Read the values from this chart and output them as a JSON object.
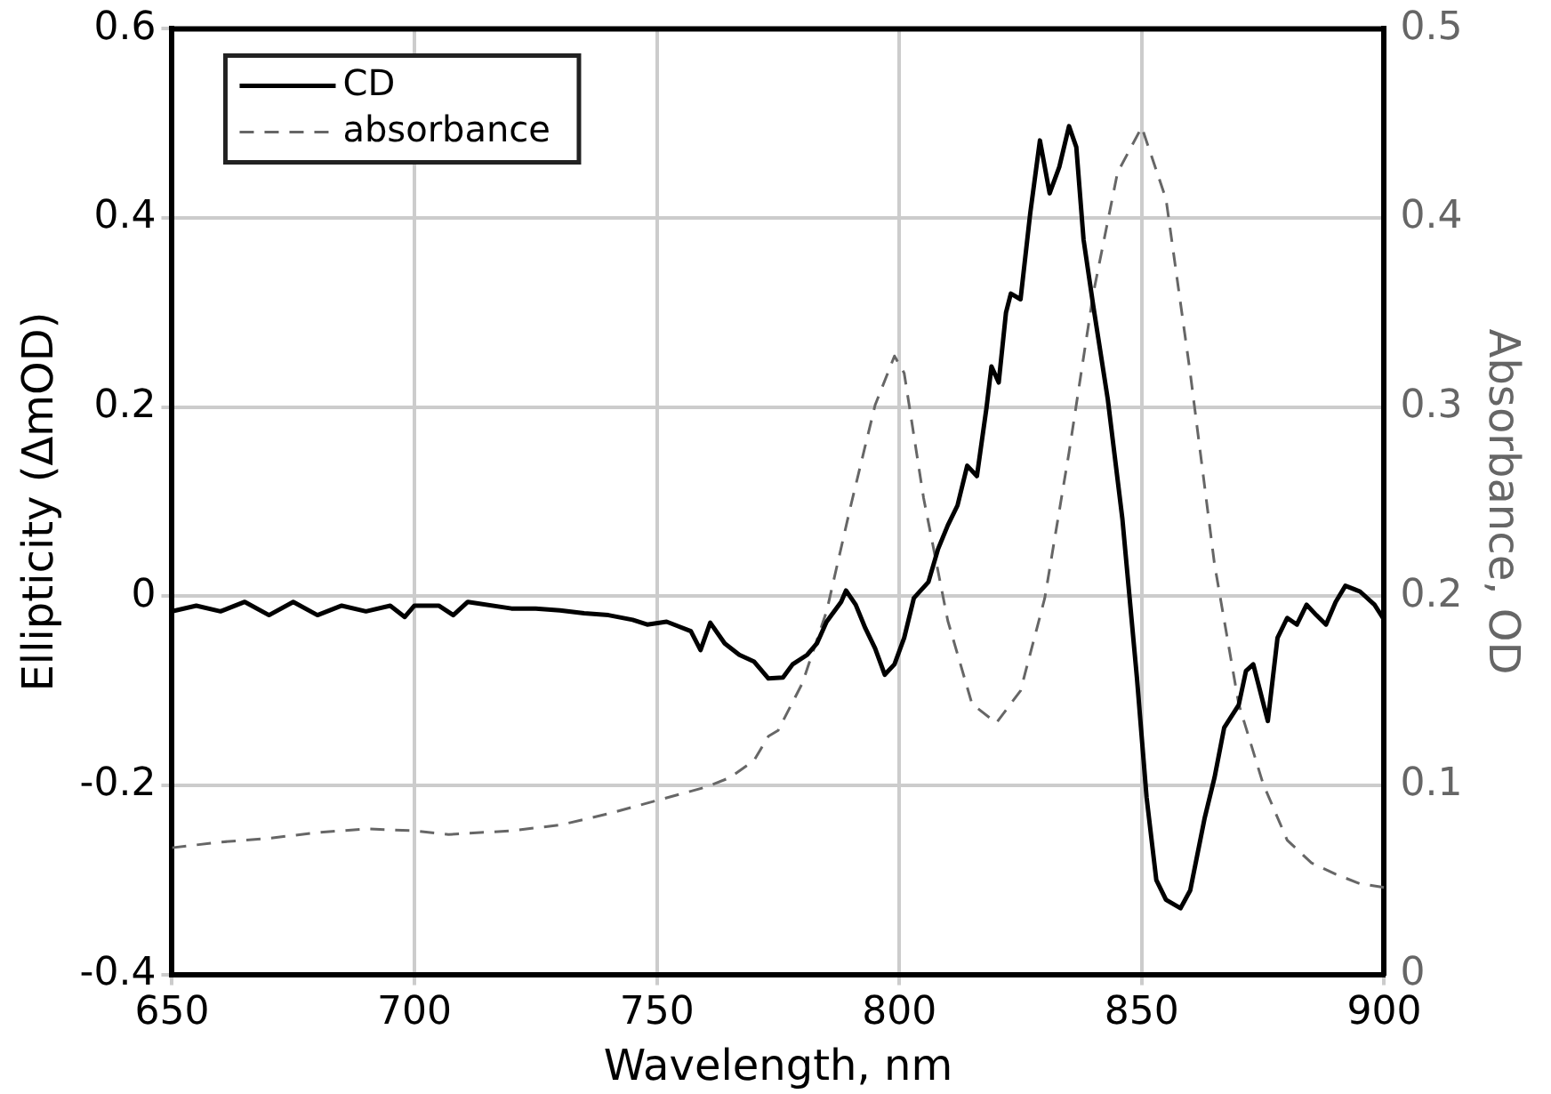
{
  "chart_data": {
    "type": "line",
    "xlabel": "Wavelength, nm",
    "ylabel": "Ellipticity (ΔmOD)",
    "y2label": "Absorbance, OD",
    "xlim": [
      650,
      900
    ],
    "xticks": [
      650,
      700,
      750,
      800,
      850,
      900
    ],
    "ylim": [
      -0.4,
      0.6
    ],
    "yticks": [
      -0.4,
      -0.2,
      0,
      0.2,
      0.4,
      0.6
    ],
    "y2lim": [
      0,
      0.5
    ],
    "y2ticks": [
      0,
      0.1,
      0.2,
      0.3,
      0.4,
      0.5
    ],
    "grid": true,
    "legend": "top left",
    "marker": "none",
    "series": [
      {
        "name": "CD",
        "color": "#000000",
        "line_style": "solid",
        "x": [
          650,
          655,
          660,
          665,
          670,
          675,
          680,
          685,
          690,
          695,
          698,
          700,
          705,
          708,
          711,
          720,
          725,
          730,
          735,
          740,
          745,
          748,
          752,
          757,
          759,
          761,
          764,
          767,
          770,
          773,
          776,
          778,
          781,
          783,
          785,
          788,
          789,
          791,
          793,
          795,
          797,
          799,
          801,
          803,
          806,
          808,
          810,
          812,
          814,
          816,
          818,
          819,
          820.5,
          822,
          823,
          825,
          827,
          829,
          831,
          833,
          835,
          836.5,
          838,
          840,
          843,
          846,
          849,
          851,
          853,
          855,
          858,
          860,
          863,
          865,
          867,
          870,
          871.5,
          873,
          876,
          878,
          880,
          882,
          884,
          886,
          888,
          890,
          892,
          895,
          898,
          900
        ],
        "values": [
          -0.016,
          -0.01,
          -0.016,
          -0.006,
          -0.02,
          -0.006,
          -0.02,
          -0.01,
          -0.016,
          -0.01,
          -0.022,
          -0.01,
          -0.01,
          -0.02,
          -0.006,
          -0.013,
          -0.013,
          -0.015,
          -0.018,
          -0.02,
          -0.025,
          -0.03,
          -0.027,
          -0.037,
          -0.057,
          -0.028,
          -0.05,
          -0.062,
          -0.069,
          -0.087,
          -0.086,
          -0.072,
          -0.062,
          -0.05,
          -0.027,
          -0.006,
          0.006,
          -0.009,
          -0.034,
          -0.055,
          -0.083,
          -0.072,
          -0.044,
          -0.002,
          0.015,
          0.05,
          0.075,
          0.096,
          0.138,
          0.127,
          0.2,
          0.243,
          0.226,
          0.3,
          0.32,
          0.314,
          0.405,
          0.482,
          0.426,
          0.454,
          0.497,
          0.475,
          0.377,
          0.307,
          0.208,
          0.082,
          -0.086,
          -0.213,
          -0.3,
          -0.321,
          -0.33,
          -0.311,
          -0.234,
          -0.192,
          -0.139,
          -0.115,
          -0.079,
          -0.072,
          -0.132,
          -0.044,
          -0.023,
          -0.03,
          -0.009,
          -0.02,
          -0.03,
          -0.006,
          0.011,
          0.005,
          -0.009,
          -0.025
        ]
      },
      {
        "name": "absorbance",
        "color": "#666666",
        "line_style": "dashed",
        "axis": "y2",
        "x": [
          650,
          660,
          670,
          680,
          690,
          700,
          707,
          720,
          730,
          740,
          750,
          760,
          765,
          770,
          773,
          775,
          780,
          785,
          790,
          795,
          799,
          801,
          805,
          810,
          815,
          820,
          825,
          830,
          835,
          840,
          845,
          850,
          855,
          860,
          865,
          870,
          875,
          880,
          885,
          890,
          895,
          900
        ],
        "values": [
          0.067,
          0.07,
          0.072,
          0.075,
          0.077,
          0.076,
          0.074,
          0.076,
          0.079,
          0.085,
          0.092,
          0.099,
          0.104,
          0.113,
          0.126,
          0.129,
          0.154,
          0.192,
          0.248,
          0.301,
          0.327,
          0.318,
          0.252,
          0.187,
          0.143,
          0.133,
          0.15,
          0.199,
          0.276,
          0.36,
          0.424,
          0.448,
          0.41,
          0.318,
          0.217,
          0.143,
          0.101,
          0.071,
          0.059,
          0.053,
          0.048,
          0.046
        ]
      }
    ]
  }
}
